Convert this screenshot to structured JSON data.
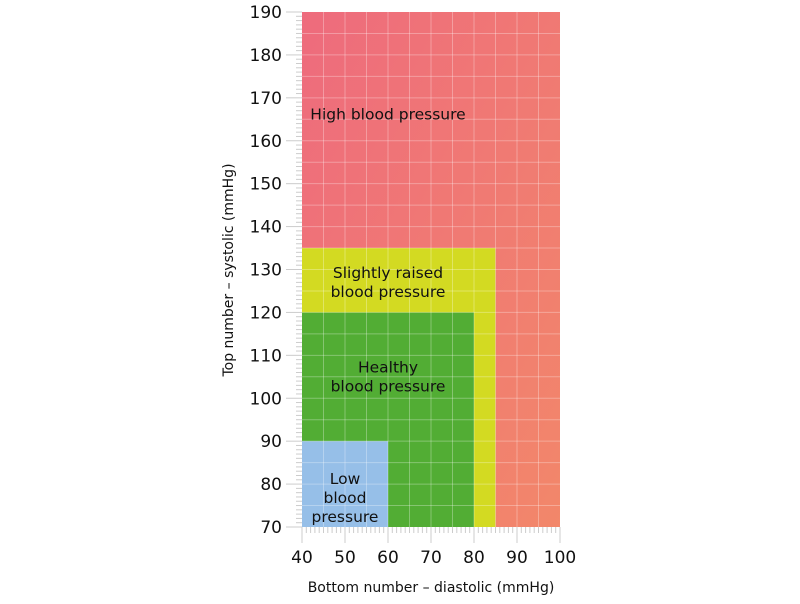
{
  "chart_data": {
    "type": "area",
    "xlabel": "Bottom number – diastolic (mmHg)",
    "ylabel": "Top number – systolic (mmHg)",
    "xlim": [
      40,
      100
    ],
    "ylim": [
      70,
      190
    ],
    "xticks": [
      40,
      50,
      60,
      70,
      80,
      90,
      100
    ],
    "yticks": [
      70,
      80,
      90,
      100,
      110,
      120,
      130,
      140,
      150,
      160,
      170,
      180,
      190
    ],
    "grid": true,
    "regions": [
      {
        "label": [
          "High blood pressure"
        ],
        "x": [
          40,
          100
        ],
        "y": [
          70,
          190
        ],
        "color": "#ee6b7d",
        "color_end": "#f2876a",
        "label_pos": [
          60,
          165
        ]
      },
      {
        "label": [
          "Slightly raised",
          "blood pressure"
        ],
        "x": [
          40,
          85
        ],
        "y": [
          70,
          135
        ],
        "color": "#d3da22",
        "label_pos": [
          60,
          128
        ]
      },
      {
        "label": [
          "Healthy",
          "blood pressure"
        ],
        "x": [
          40,
          80
        ],
        "y": [
          70,
          120
        ],
        "color": "#52ad34",
        "label_pos": [
          60,
          106
        ]
      },
      {
        "label": [
          "Low",
          "blood",
          "pressure"
        ],
        "x": [
          40,
          60
        ],
        "y": [
          70,
          90
        ],
        "color": "#96bfe8",
        "label_pos": [
          50,
          80
        ]
      }
    ]
  }
}
